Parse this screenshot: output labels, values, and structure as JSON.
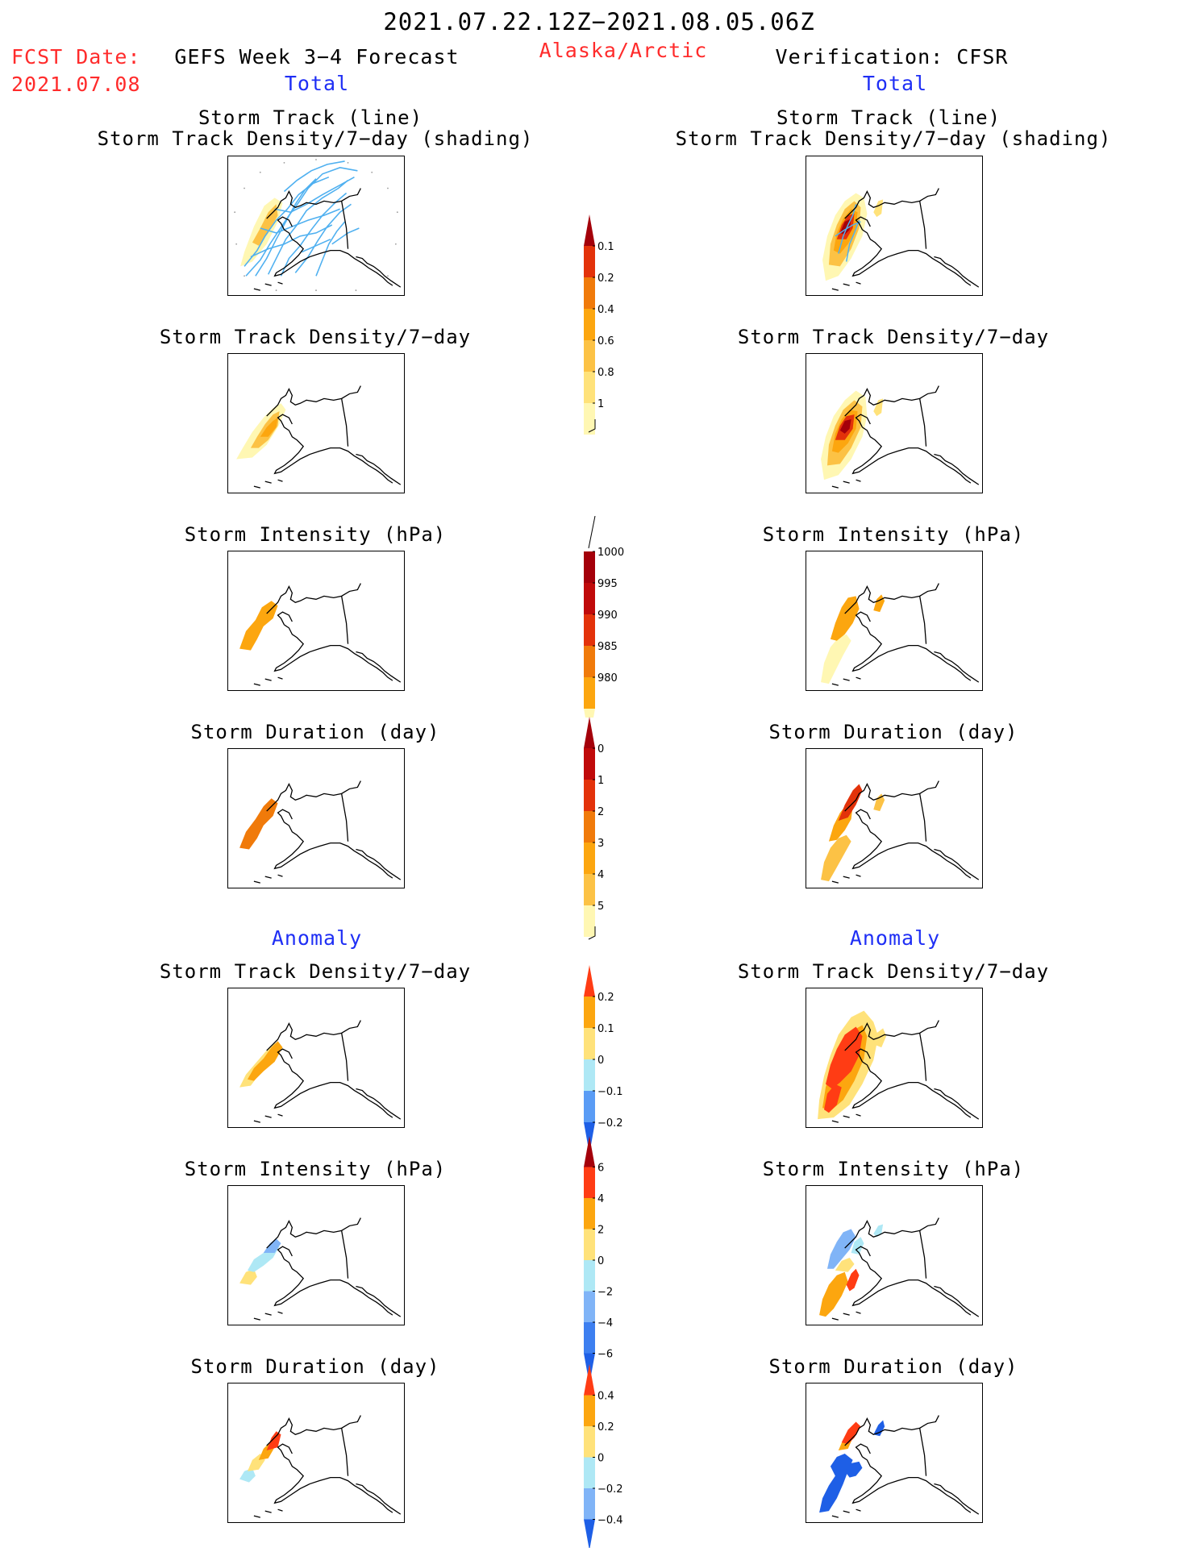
{
  "header": {
    "period": "2021.07.22.12Z−2021.08.05.06Z",
    "fcst_label": "FCST Date:",
    "fcst_date": "2021.07.08",
    "forecast_name": "GEFS Week 3−4 Forecast",
    "region": "Alaska/Arctic",
    "verification": "Verification: CFSR"
  },
  "sections": {
    "total_left": "Total",
    "total_right": "Total",
    "anomaly_left": "Anomaly",
    "anomaly_right": "Anomaly"
  },
  "panel_titles": {
    "track_line": "Storm Track (line)",
    "track_shading": "Storm Track Density/7−day (shading)",
    "density": "Storm Track Density/7−day",
    "intensity": "Storm Intensity (hPa)",
    "duration": "Storm Duration (day)"
  },
  "colors": {
    "red": "#ff2b2b",
    "blue": "#1f2ff5",
    "track_line": "#4fb0f0"
  },
  "colorbars": [
    {
      "id": "density",
      "colors": [
        "#fff7b3",
        "#ffe27a",
        "#fcc245",
        "#fca60f",
        "#f07a0a",
        "#e3320a",
        "#a4000a"
      ],
      "labels": [
        "0.1",
        "0.2",
        "0.4",
        "0.6",
        "0.8",
        "1"
      ],
      "arrow": "top"
    },
    {
      "id": "intensity",
      "colors": [
        "#fff7b3",
        "#fca60f",
        "#f07a0a",
        "#e3320a",
        "#c00a0a",
        "#a4000a"
      ],
      "labels": [
        "1000",
        "995",
        "990",
        "985",
        "980"
      ],
      "arrow": "bottom"
    },
    {
      "id": "duration",
      "colors": [
        "#fff7b3",
        "#fcc245",
        "#fca60f",
        "#f07a0a",
        "#e3320a",
        "#c00a0a",
        "#a4000a"
      ],
      "labels": [
        "0",
        "1",
        "2",
        "3",
        "4",
        "5"
      ],
      "arrow": "top"
    },
    {
      "id": "density_anom",
      "colors": [
        "#1e5fe6",
        "#5a9cf5",
        "#aee8f5",
        "#ffe27a",
        "#fca60f",
        "#ff3c14"
      ],
      "labels": [
        "0.2",
        "0.1",
        "0",
        "−0.1",
        "−0.2"
      ],
      "arrow": "both"
    },
    {
      "id": "intensity_anom",
      "colors": [
        "#1e5fe6",
        "#3d7ff0",
        "#80b4f7",
        "#aee8f5",
        "#ffe27a",
        "#fca60f",
        "#ff3c14",
        "#a4000a"
      ],
      "labels": [
        "6",
        "4",
        "2",
        "0",
        "−2",
        "−4",
        "−6"
      ],
      "arrow": "both"
    },
    {
      "id": "duration_anom",
      "colors": [
        "#1e5fe6",
        "#80b4f7",
        "#aee8f5",
        "#ffe27a",
        "#fca60f",
        "#ff3c14"
      ],
      "labels": [
        "0.4",
        "0.2",
        "0",
        "−0.2",
        "−0.4"
      ],
      "arrow": "both"
    }
  ]
}
